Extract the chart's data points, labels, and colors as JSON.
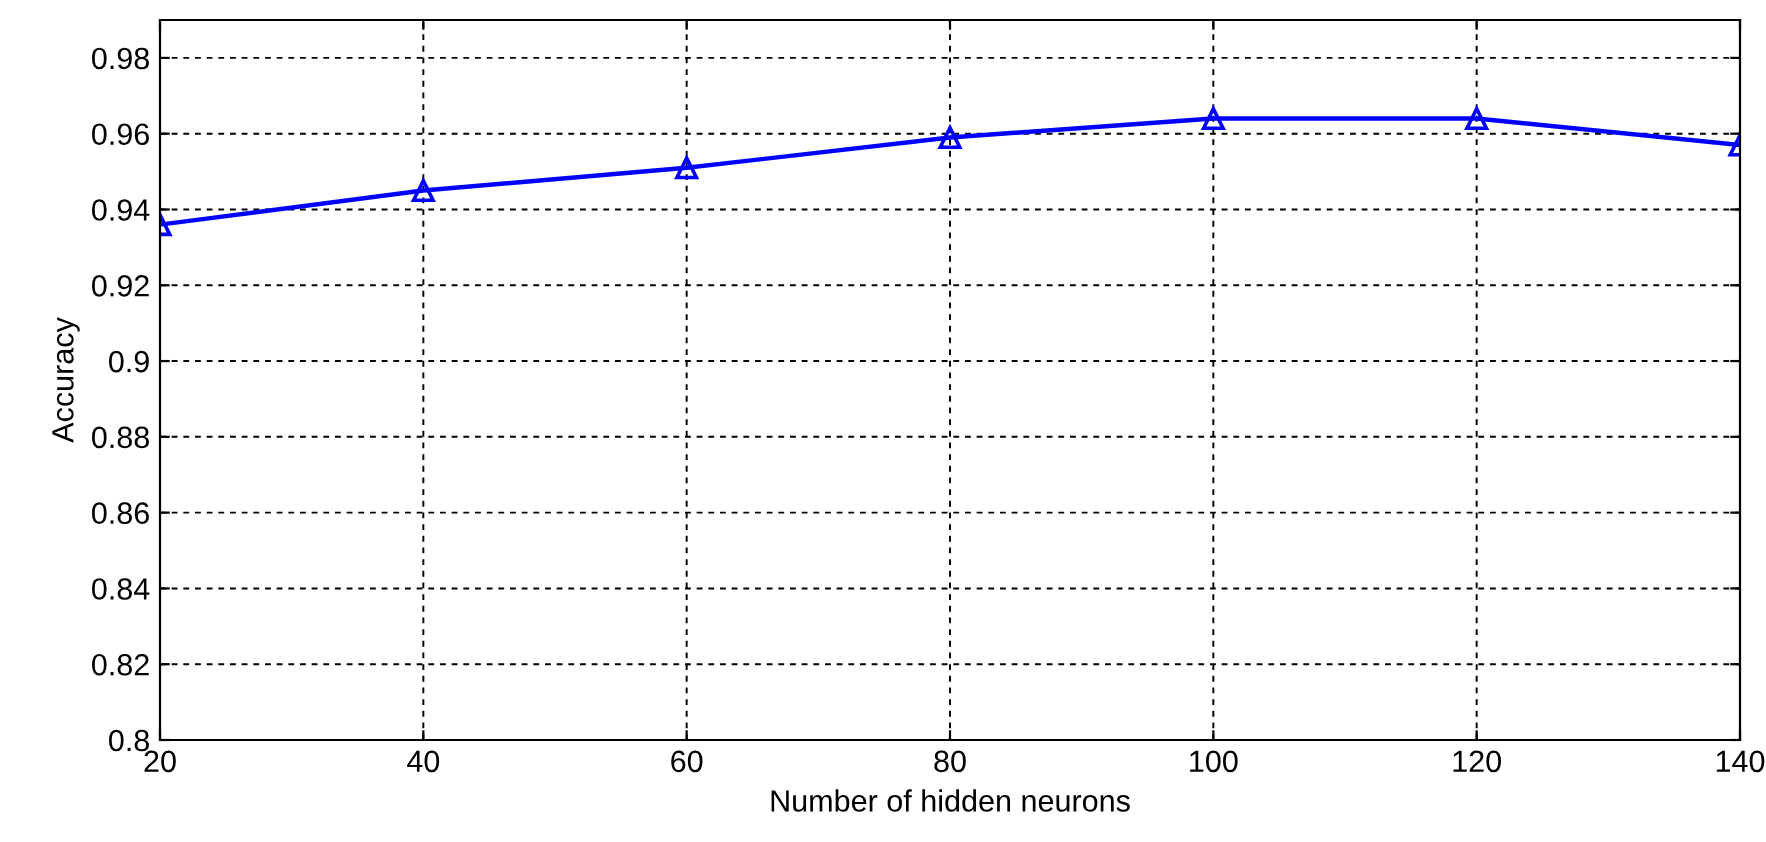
{
  "chart_data": {
    "type": "line",
    "xlabel": "Number of hidden neurons",
    "ylabel": "Accuracy",
    "x": [
      20,
      40,
      60,
      80,
      100,
      120,
      140
    ],
    "series": [
      {
        "color": "#0000ff",
        "values": [
          0.936,
          0.945,
          0.951,
          0.959,
          0.964,
          0.964,
          0.957
        ]
      }
    ],
    "xlim": [
      20,
      140
    ],
    "xticks": [
      20,
      40,
      60,
      80,
      100,
      120,
      140
    ],
    "ylim": [
      0.8,
      0.99
    ],
    "yticks": [
      0.8,
      0.82,
      0.84,
      0.86,
      0.88,
      0.9,
      0.92,
      0.94,
      0.96,
      0.98
    ],
    "grid": true,
    "marker": "triangle",
    "line_style": "solid"
  }
}
